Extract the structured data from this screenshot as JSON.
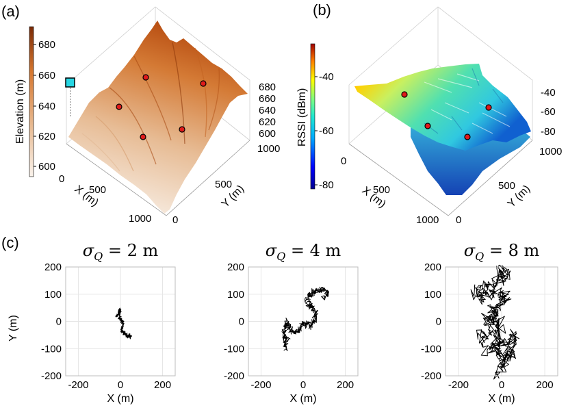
{
  "panels": {
    "a": {
      "label": "(a)",
      "colorbar": {
        "label": "Elevation (m)",
        "ticks": [
          "600",
          "620",
          "640",
          "660",
          "680"
        ]
      },
      "x_label": "X (m)",
      "y_label": "Y (m)",
      "x_ticks": [
        "0",
        "500",
        "1000"
      ],
      "y_ticks": [
        "0",
        "500",
        "1000"
      ],
      "z_ticks": [
        "600",
        "620",
        "640",
        "660",
        "680"
      ]
    },
    "b": {
      "label": "(b)",
      "colorbar": {
        "label": "RSSI (dBm)",
        "ticks": [
          "-80",
          "-60",
          "-40"
        ]
      },
      "x_label": "X (m)",
      "y_label": "Y (m)",
      "x_ticks": [
        "0",
        "500",
        "1000"
      ],
      "y_ticks": [
        "0",
        "500",
        "1000"
      ],
      "z_ticks": [
        "-80",
        "-60",
        "-40"
      ]
    },
    "c": {
      "label": "(c)"
    }
  },
  "colors": {
    "marker_fill": "#e01b1b",
    "terrain_low": "#f6ebdf",
    "terrain_high": "#b8480e",
    "base_station": "#27d6e3",
    "walk_line": "#000000",
    "grid": "#e6e6e6"
  },
  "chart_data": [
    {
      "type": "line",
      "title": "σ_Q = 2 m",
      "xlabel": "X (m)",
      "ylabel": "Y (m)",
      "xlim": [
        -260,
        260
      ],
      "ylim": [
        -200,
        200
      ],
      "xticks": [
        -200,
        0,
        200
      ],
      "yticks": [
        -200,
        -100,
        0,
        100,
        200
      ],
      "xtick_labels": [
        "-200",
        "0",
        "200"
      ],
      "ytick_labels": [
        "-200",
        "-100",
        "0",
        "100",
        "200"
      ],
      "grid": true,
      "walk": {
        "step_sigma": 2,
        "steps": 300,
        "seed": 11
      },
      "anchors": [
        [
          -20,
          18
        ],
        [
          -8,
          28
        ],
        [
          0,
          45
        ],
        [
          -5,
          12
        ],
        [
          8,
          4
        ],
        [
          12,
          -18
        ],
        [
          4,
          -32
        ],
        [
          20,
          -42
        ],
        [
          30,
          -55
        ],
        [
          42,
          -52
        ],
        [
          50,
          -55
        ]
      ]
    },
    {
      "type": "line",
      "title": "σ_Q = 4 m",
      "xlabel": "X (m)",
      "ylabel": "",
      "xlim": [
        -260,
        260
      ],
      "ylim": [
        -200,
        200
      ],
      "xticks": [
        -200,
        0,
        200
      ],
      "yticks": [
        -200,
        -100,
        0,
        100,
        200
      ],
      "xtick_labels": [
        "-200",
        "0",
        "200"
      ],
      "ytick_labels": [
        "-200",
        "-100",
        "0",
        "100",
        "200"
      ],
      "grid": true,
      "walk": {
        "step_sigma": 4,
        "steps": 450,
        "seed": 23
      },
      "anchors": [
        [
          -85,
          -100
        ],
        [
          -75,
          -70
        ],
        [
          -95,
          -50
        ],
        [
          -90,
          -20
        ],
        [
          -80,
          -5
        ],
        [
          -60,
          -30
        ],
        [
          -40,
          -45
        ],
        [
          -20,
          -30
        ],
        [
          0,
          -10
        ],
        [
          20,
          -5
        ],
        [
          35,
          -20
        ],
        [
          50,
          0
        ],
        [
          60,
          25
        ],
        [
          40,
          55
        ],
        [
          30,
          60
        ],
        [
          20,
          90
        ],
        [
          40,
          100
        ],
        [
          60,
          115
        ],
        [
          80,
          110
        ],
        [
          100,
          120
        ],
        [
          115,
          100
        ],
        [
          95,
          85
        ]
      ]
    },
    {
      "type": "line",
      "title": "σ_Q = 8 m",
      "xlabel": "X (m)",
      "ylabel": "",
      "xlim": [
        -260,
        260
      ],
      "ylim": [
        -200,
        200
      ],
      "xticks": [
        -200,
        0,
        200
      ],
      "yticks": [
        -200,
        -100,
        0,
        100,
        200
      ],
      "xtick_labels": [
        "-200",
        "0",
        "200"
      ],
      "ytick_labels": [
        "-200",
        "-100",
        "0",
        "100",
        "200"
      ],
      "grid": true,
      "walk": {
        "step_sigma": 8,
        "steps": 500,
        "seed": 37
      },
      "anchors": [
        [
          -10,
          180
        ],
        [
          20,
          185
        ],
        [
          10,
          160
        ],
        [
          -20,
          150
        ],
        [
          -40,
          130
        ],
        [
          -100,
          130
        ],
        [
          -120,
          110
        ],
        [
          -95,
          85
        ],
        [
          -80,
          100
        ],
        [
          -30,
          110
        ],
        [
          0,
          100
        ],
        [
          20,
          80
        ],
        [
          -10,
          60
        ],
        [
          -45,
          55
        ],
        [
          -30,
          10
        ],
        [
          -60,
          -5
        ],
        [
          -70,
          20
        ],
        [
          -20,
          30
        ],
        [
          -5,
          -20
        ],
        [
          -20,
          -60
        ],
        [
          -40,
          -110
        ],
        [
          0,
          -70
        ],
        [
          20,
          -90
        ],
        [
          50,
          -50
        ],
        [
          60,
          -80
        ],
        [
          40,
          -120
        ],
        [
          10,
          -150
        ],
        [
          -10,
          -190
        ],
        [
          30,
          -110
        ],
        [
          -10,
          -130
        ],
        [
          -30,
          -90
        ],
        [
          -70,
          -100
        ],
        [
          -100,
          -40
        ],
        [
          -50,
          -50
        ],
        [
          -20,
          -20
        ]
      ]
    }
  ]
}
